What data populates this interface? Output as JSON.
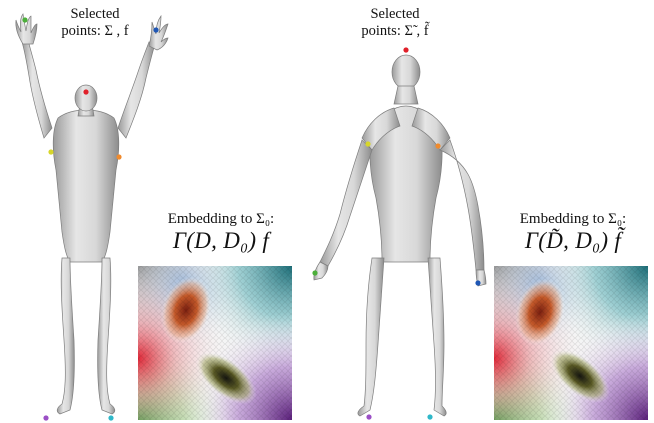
{
  "left_panel": {
    "selected_label_line1": "Selected",
    "selected_label_line2": "points: Σ , f",
    "embedding_caption": "Embedding to Σ₀:",
    "embedding_formula": "Γ(D, D₀) f"
  },
  "right_panel": {
    "selected_label_line1": "Selected",
    "selected_label_line2": "points: Σ̃ , f̃",
    "embedding_caption": "Embedding to Σ₀:",
    "embedding_formula": "Γ(D̃, D₀) f̃"
  },
  "point_colors": {
    "head": "#e0202a",
    "hand_left": "#4caf3a",
    "hand_right": "#1f57b5",
    "shoulder_left": "#d7d62a",
    "shoulder_right": "#f08a2c",
    "foot_left": "#9b4fc6",
    "foot_right": "#2fb8c9"
  }
}
